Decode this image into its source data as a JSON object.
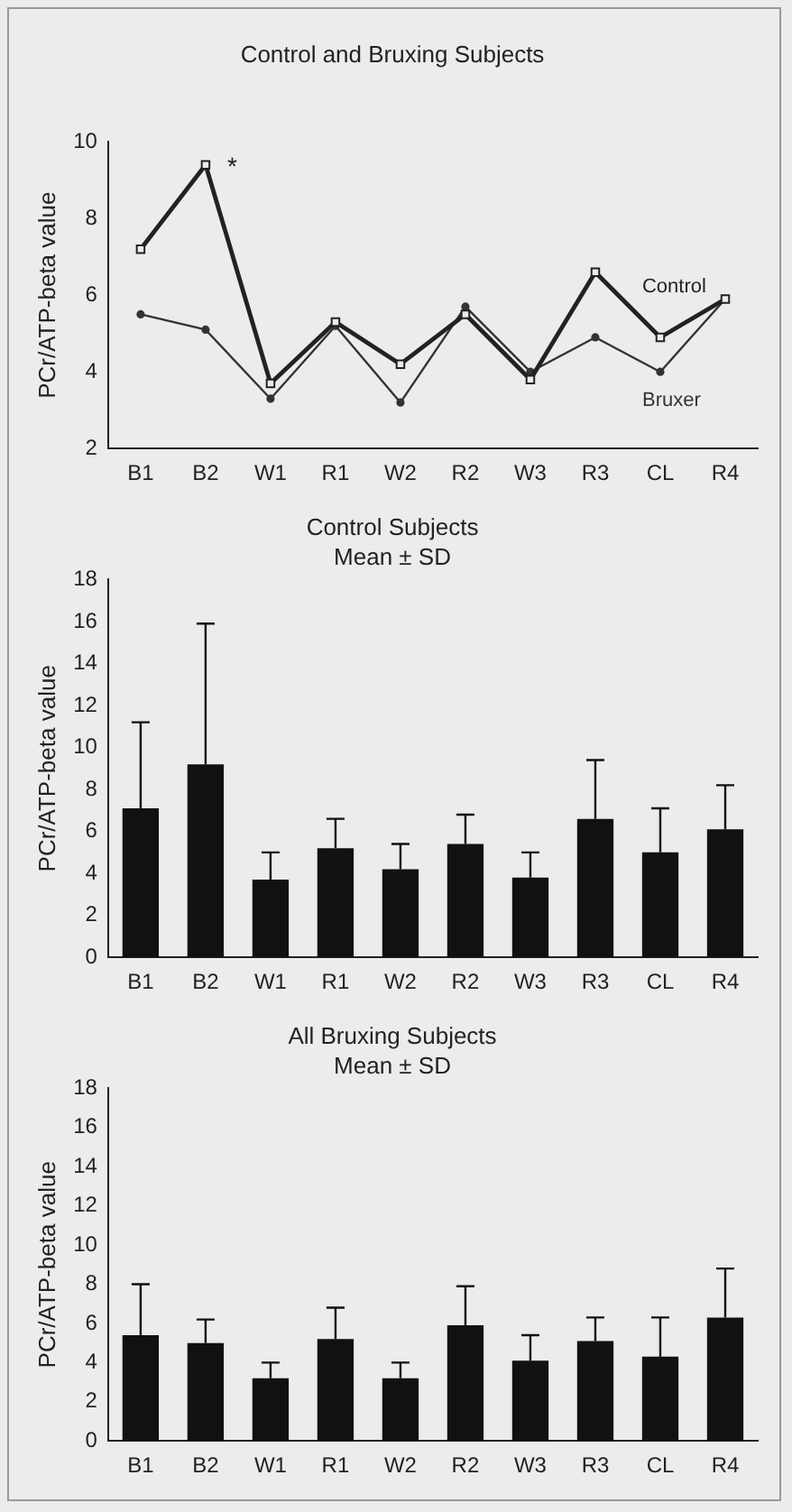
{
  "chart_data": [
    {
      "type": "line",
      "title": "Control and Bruxing Subjects",
      "ylabel": "PCr/ATP-beta value",
      "categories": [
        "B1",
        "B2",
        "W1",
        "R1",
        "W2",
        "R2",
        "W3",
        "R3",
        "CL",
        "R4"
      ],
      "series": [
        {
          "name": "Control",
          "color": "#222222",
          "marker": "square",
          "values": [
            7.2,
            9.4,
            3.7,
            5.3,
            4.2,
            5.5,
            3.8,
            6.6,
            4.9,
            5.9
          ]
        },
        {
          "name": "Bruxer",
          "color": "#333333",
          "marker": "circle",
          "values": [
            5.5,
            5.1,
            3.3,
            5.2,
            3.2,
            5.7,
            4.0,
            4.9,
            4.0,
            5.9
          ]
        }
      ],
      "ylim": [
        2,
        10
      ],
      "yticks": [
        2,
        4,
        6,
        8,
        10
      ],
      "grid": false,
      "legend": false,
      "line_style": "solid",
      "annotations": [
        {
          "text": "*",
          "x": "B2",
          "y": 9.4
        }
      ]
    },
    {
      "type": "bar",
      "title": "Control Subjects",
      "subtitle": "Mean ± SD",
      "ylabel": "PCr/ATP-beta value",
      "categories": [
        "B1",
        "B2",
        "W1",
        "R1",
        "W2",
        "R2",
        "W3",
        "R3",
        "CL",
        "R4"
      ],
      "values": [
        7.1,
        9.2,
        3.7,
        5.2,
        4.2,
        5.4,
        3.8,
        6.6,
        5.0,
        6.1
      ],
      "errors": [
        [
          7.1,
          11.2
        ],
        [
          9.2,
          15.9
        ],
        [
          3.7,
          5.0
        ],
        [
          5.2,
          6.6
        ],
        [
          4.2,
          5.4
        ],
        [
          5.4,
          6.8
        ],
        [
          3.8,
          5.0
        ],
        [
          6.6,
          9.4
        ],
        [
          5.0,
          7.1
        ],
        [
          6.1,
          8.2
        ]
      ],
      "color": "#111111",
      "ylim": [
        0,
        18
      ],
      "yticks": [
        0,
        2,
        4,
        6,
        8,
        10,
        12,
        14,
        16,
        18
      ],
      "grid": false,
      "legend": false
    },
    {
      "type": "bar",
      "title": "All Bruxing Subjects",
      "subtitle": "Mean ± SD",
      "ylabel": "PCr/ATP-beta value",
      "categories": [
        "B1",
        "B2",
        "W1",
        "R1",
        "W2",
        "R2",
        "W3",
        "R3",
        "CL",
        "R4"
      ],
      "values": [
        5.4,
        5.0,
        3.2,
        5.2,
        3.2,
        5.9,
        4.1,
        5.1,
        4.3,
        6.3
      ],
      "errors": [
        [
          5.4,
          8.0
        ],
        [
          5.0,
          6.2
        ],
        [
          3.2,
          4.0
        ],
        [
          5.2,
          6.8
        ],
        [
          3.2,
          4.0
        ],
        [
          5.9,
          7.9
        ],
        [
          4.1,
          5.4
        ],
        [
          5.1,
          6.3
        ],
        [
          4.3,
          6.3
        ],
        [
          6.3,
          8.8
        ]
      ],
      "color": "#111111",
      "ylim": [
        0,
        18
      ],
      "yticks": [
        0,
        2,
        4,
        6,
        8,
        10,
        12,
        14,
        16,
        18
      ],
      "grid": false,
      "legend": false
    }
  ]
}
